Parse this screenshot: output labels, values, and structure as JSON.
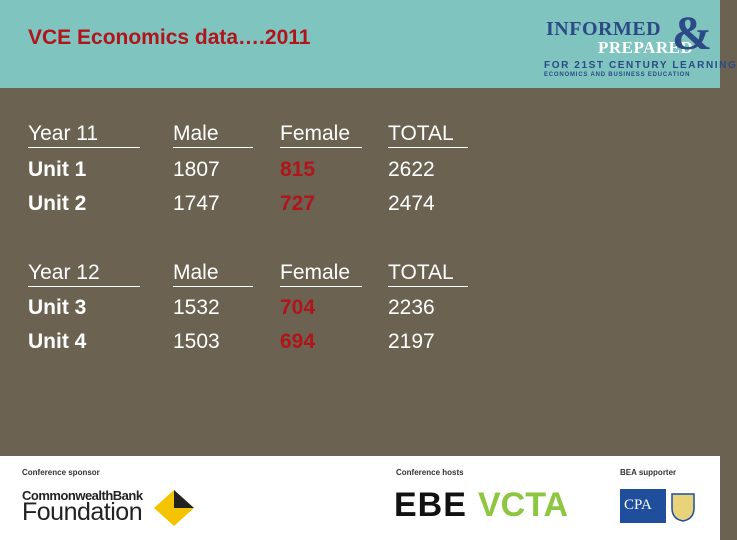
{
  "header": {
    "title": "VCE Economics data….2011",
    "logo": {
      "line1": "INFORMED",
      "line2": "PREPARED",
      "amp": "&",
      "tagline": "FOR 21ST CENTURY LEARNING",
      "subline": "ECONOMICS AND BUSINESS EDUCATION"
    }
  },
  "table": {
    "year11": {
      "headers": [
        "Year 11",
        "Male",
        "Female",
        "TOTAL"
      ],
      "rows": [
        [
          "Unit 1",
          "1807",
          "815",
          "2622"
        ],
        [
          "Unit 2",
          "1747",
          "727",
          "2474"
        ]
      ]
    },
    "year12": {
      "headers": [
        "Year 12",
        "Male",
        "Female",
        "TOTAL"
      ],
      "rows": [
        [
          "Unit 3",
          "1532",
          "704",
          "2236"
        ],
        [
          "Unit 4",
          "1503",
          "694",
          "2197"
        ]
      ]
    }
  },
  "footer": {
    "sponsor_caption": "Conference sponsor",
    "sponsor_name_line1": "CommonwealthBank",
    "sponsor_name_line2": "Foundation",
    "hosts_caption": "Conference hosts",
    "host1": "EBE",
    "host2": "VCTA",
    "supporter_caption": "BEA supporter",
    "supporter": "CPA"
  },
  "colors": {
    "header_bg": "#7fc4be",
    "body_bg": "#6b6251",
    "accent_red": "#b0151c",
    "logo_blue": "#2b4a86",
    "vcta_green": "#8dc63f",
    "cba_yellow": "#f5c400"
  }
}
